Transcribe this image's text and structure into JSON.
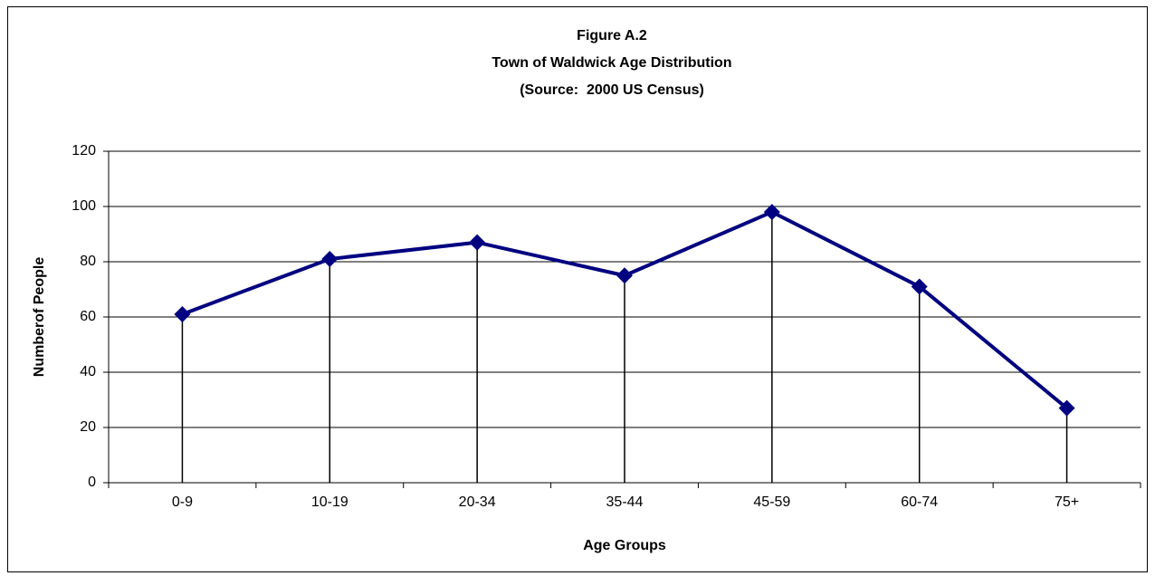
{
  "chart_data": {
    "type": "line",
    "title": [
      "Figure A.2",
      "Town of Waldwick Age Distribution",
      "(Source:  2000 US Census)"
    ],
    "x_label": "Age Groups",
    "y_label": "Numberof People",
    "categories": [
      "0-9",
      "10-19",
      "20-34",
      "35-44",
      "45-59",
      "60-74",
      "75+"
    ],
    "series": [
      {
        "name": "Number of People",
        "color": "#000080",
        "values": [
          61,
          81,
          87,
          75,
          98,
          71,
          27
        ]
      }
    ],
    "ylim": [
      0,
      120
    ],
    "yticks": [
      0,
      20,
      40,
      60,
      80,
      100,
      120
    ],
    "grid": true,
    "drop_lines": true
  }
}
